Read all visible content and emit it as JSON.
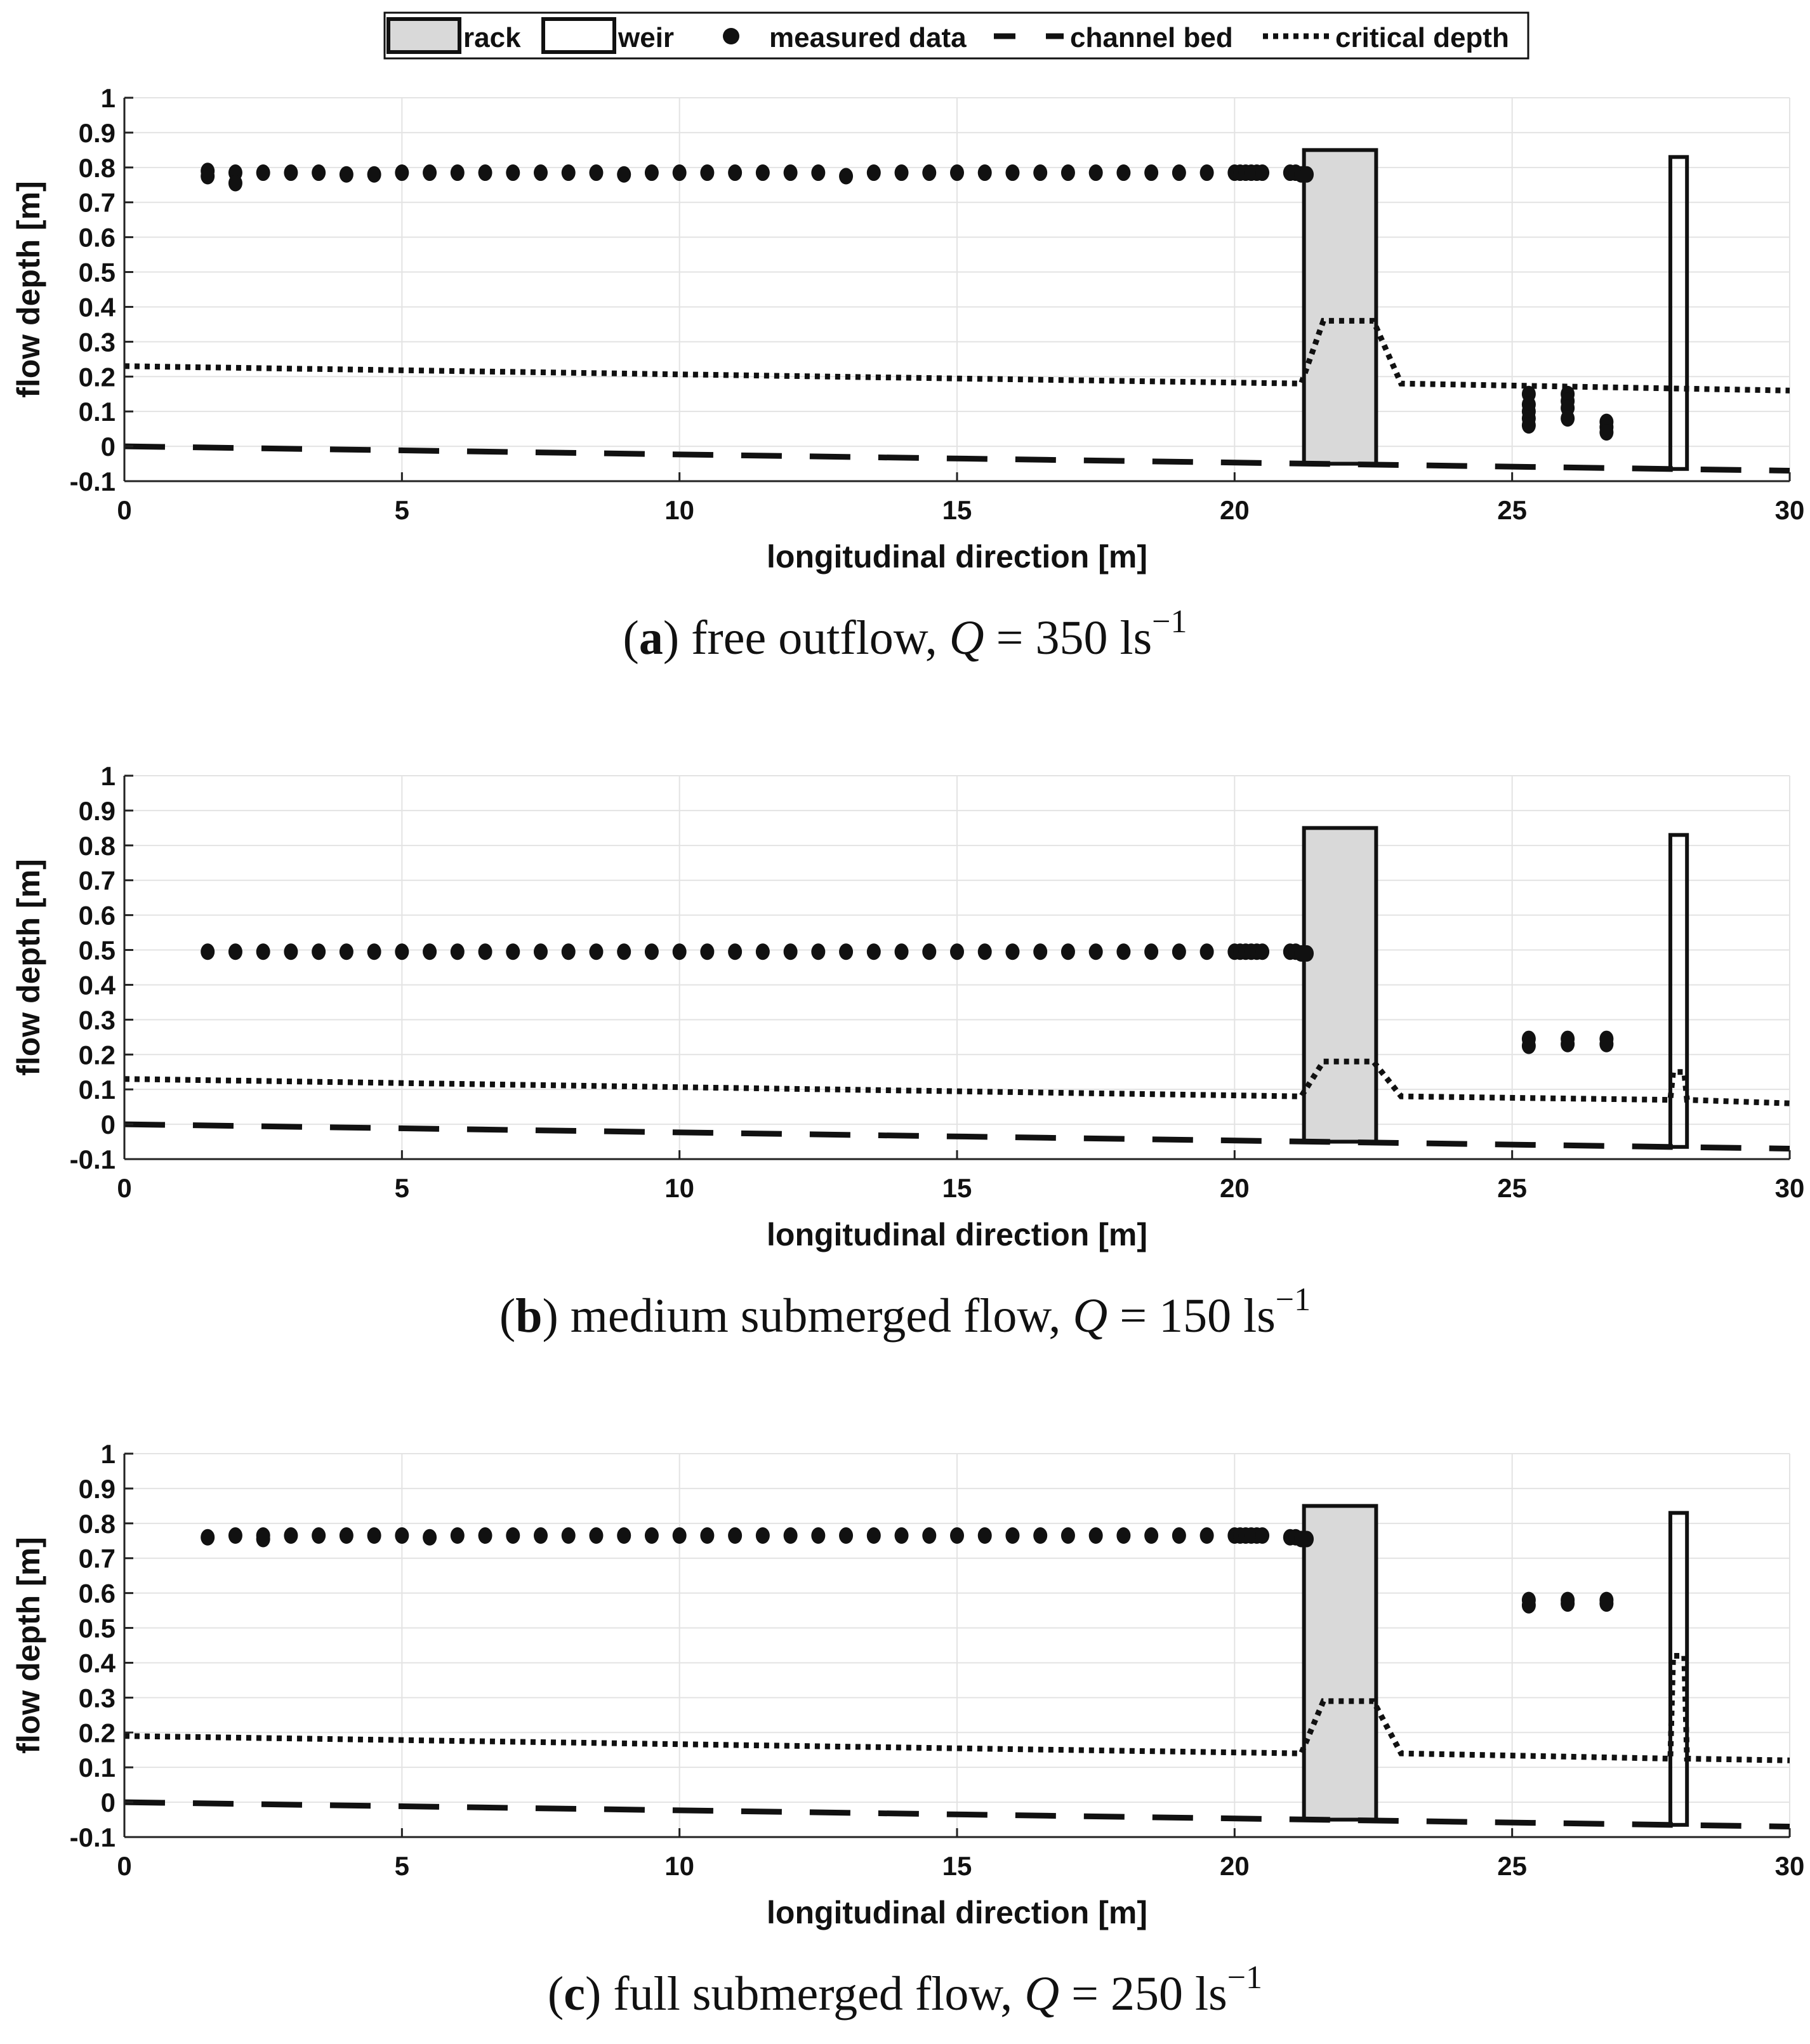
{
  "legend": {
    "entries": [
      {
        "key": "rack",
        "label": "rack",
        "style": "filled-box"
      },
      {
        "key": "weir",
        "label": "weir",
        "style": "empty-box"
      },
      {
        "key": "measured",
        "label": "measured data",
        "style": "dot"
      },
      {
        "key": "bed",
        "label": "channel bed",
        "style": "dashed"
      },
      {
        "key": "critical",
        "label": "critical depth",
        "style": "dotted"
      }
    ]
  },
  "colors": {
    "rack_fill": "#d9d9d9",
    "grid": "#e3e3e3",
    "ink": "#111111"
  },
  "chart_data": [
    {
      "type": "scatter",
      "caption": {
        "letter": "a",
        "text": "free outflow, ",
        "q_symbol": "Q",
        "eq": " = 350 ls",
        "exp": "−1"
      },
      "xlabel": "longitudinal direction [m]",
      "ylabel": "flow depth [m]",
      "xlim": [
        0,
        30
      ],
      "ylim": [
        -0.1,
        1
      ],
      "xticks": [
        0,
        5,
        10,
        15,
        20,
        25,
        30
      ],
      "yticks": [
        -0.1,
        0,
        0.1,
        0.2,
        0.3,
        0.4,
        0.5,
        0.6,
        0.7,
        0.8,
        0.9,
        1
      ],
      "ytick_labels": [
        "-0.1",
        "0",
        "0.1",
        "0.2",
        "0.3",
        "0.4",
        "0.5",
        "0.6",
        "0.7",
        "0.8",
        "0.9",
        "1"
      ],
      "grid": true,
      "rack": {
        "x": [
          21.25,
          22.55
        ],
        "y_top": 0.85,
        "y_bottom": -0.05
      },
      "weir": {
        "x": [
          27.85,
          28.15
        ],
        "y_top": 0.83,
        "y_bottom": -0.065
      },
      "channel_bed": {
        "x": [
          0,
          30
        ],
        "y": [
          0.0,
          -0.07
        ]
      },
      "critical_depth": {
        "x": [
          0,
          21.2,
          21.6,
          22.5,
          23.0,
          30
        ],
        "y": [
          0.23,
          0.18,
          0.36,
          0.36,
          0.18,
          0.16
        ]
      },
      "measured_data": {
        "x": [
          1.5,
          1.5,
          2.0,
          2.0,
          2.5,
          3.0,
          3.5,
          4.0,
          4.5,
          5.0,
          5.5,
          6.0,
          6.5,
          7.0,
          7.5,
          8.0,
          8.5,
          9.0,
          9.5,
          10.0,
          10.5,
          11.0,
          11.5,
          12.0,
          12.5,
          13.0,
          13.5,
          14.0,
          14.5,
          15.0,
          15.5,
          16.0,
          16.5,
          17.0,
          17.5,
          18.0,
          18.5,
          19.0,
          19.5,
          20.0,
          20.1,
          20.2,
          20.3,
          20.4,
          20.5,
          21.0,
          21.1,
          21.2,
          21.3,
          25.3,
          25.3,
          25.3,
          25.3,
          25.3,
          26.0,
          26.0,
          26.0,
          26.0,
          26.7,
          26.7,
          26.7
        ],
        "y": [
          0.79,
          0.775,
          0.785,
          0.755,
          0.785,
          0.785,
          0.785,
          0.78,
          0.78,
          0.785,
          0.785,
          0.785,
          0.785,
          0.785,
          0.785,
          0.785,
          0.785,
          0.78,
          0.785,
          0.785,
          0.785,
          0.785,
          0.785,
          0.785,
          0.785,
          0.775,
          0.785,
          0.785,
          0.785,
          0.785,
          0.785,
          0.785,
          0.785,
          0.785,
          0.785,
          0.785,
          0.785,
          0.785,
          0.785,
          0.785,
          0.785,
          0.785,
          0.785,
          0.785,
          0.785,
          0.785,
          0.785,
          0.78,
          0.78,
          0.15,
          0.12,
          0.1,
          0.08,
          0.06,
          0.15,
          0.13,
          0.11,
          0.08,
          0.07,
          0.055,
          0.04
        ]
      }
    },
    {
      "type": "scatter",
      "caption": {
        "letter": "b",
        "text": "medium submerged flow, ",
        "q_symbol": "Q",
        "eq": " = 150 ls",
        "exp": "−1"
      },
      "xlabel": "longitudinal direction [m]",
      "ylabel": "flow depth [m]",
      "xlim": [
        0,
        30
      ],
      "ylim": [
        -0.1,
        1
      ],
      "xticks": [
        0,
        5,
        10,
        15,
        20,
        25,
        30
      ],
      "yticks": [
        -0.1,
        0,
        0.1,
        0.2,
        0.3,
        0.4,
        0.5,
        0.6,
        0.7,
        0.8,
        0.9,
        1
      ],
      "ytick_labels": [
        "-0.1",
        "0",
        "0.1",
        "0.2",
        "0.3",
        "0.4",
        "0.5",
        "0.6",
        "0.7",
        "0.8",
        "0.9",
        "1"
      ],
      "grid": true,
      "rack": {
        "x": [
          21.25,
          22.55
        ],
        "y_top": 0.85,
        "y_bottom": -0.05
      },
      "weir": {
        "x": [
          27.85,
          28.15
        ],
        "y_top": 0.83,
        "y_bottom": -0.065
      },
      "channel_bed": {
        "x": [
          0,
          30
        ],
        "y": [
          0.0,
          -0.07
        ]
      },
      "critical_depth": {
        "x": [
          0,
          21.2,
          21.6,
          22.5,
          23.0,
          27.85,
          27.9,
          28.1,
          28.15,
          30
        ],
        "y": [
          0.13,
          0.08,
          0.18,
          0.18,
          0.08,
          0.07,
          0.15,
          0.15,
          0.07,
          0.06
        ]
      },
      "measured_data": {
        "x": [
          1.5,
          2.0,
          2.5,
          3.0,
          3.5,
          4.0,
          4.5,
          5.0,
          5.5,
          6.0,
          6.5,
          7.0,
          7.5,
          8.0,
          8.5,
          9.0,
          9.5,
          10.0,
          10.5,
          11.0,
          11.5,
          12.0,
          12.5,
          13.0,
          13.5,
          14.0,
          14.5,
          15.0,
          15.5,
          16.0,
          16.5,
          17.0,
          17.5,
          18.0,
          18.5,
          19.0,
          19.5,
          20.0,
          20.1,
          20.2,
          20.3,
          20.4,
          20.5,
          21.0,
          21.1,
          21.2,
          21.3,
          25.3,
          25.3,
          26.0,
          26.0,
          26.7,
          26.7
        ],
        "y": [
          0.495,
          0.495,
          0.495,
          0.495,
          0.495,
          0.495,
          0.495,
          0.495,
          0.495,
          0.495,
          0.495,
          0.495,
          0.495,
          0.495,
          0.495,
          0.495,
          0.495,
          0.495,
          0.495,
          0.495,
          0.495,
          0.495,
          0.495,
          0.495,
          0.495,
          0.495,
          0.495,
          0.495,
          0.495,
          0.495,
          0.495,
          0.495,
          0.495,
          0.495,
          0.495,
          0.495,
          0.495,
          0.495,
          0.495,
          0.495,
          0.495,
          0.495,
          0.495,
          0.495,
          0.495,
          0.49,
          0.49,
          0.245,
          0.225,
          0.245,
          0.23,
          0.245,
          0.23
        ]
      }
    },
    {
      "type": "scatter",
      "caption": {
        "letter": "c",
        "text": "full submerged flow, ",
        "q_symbol": "Q",
        "eq": " = 250 ls",
        "exp": "−1"
      },
      "xlabel": "longitudinal direction [m]",
      "ylabel": "flow depth [m]",
      "xlim": [
        0,
        30
      ],
      "ylim": [
        -0.1,
        1
      ],
      "xticks": [
        0,
        5,
        10,
        15,
        20,
        25,
        30
      ],
      "yticks": [
        -0.1,
        0,
        0.1,
        0.2,
        0.3,
        0.4,
        0.5,
        0.6,
        0.7,
        0.8,
        0.9,
        1
      ],
      "ytick_labels": [
        "-0.1",
        "0",
        "0.1",
        "0.2",
        "0.3",
        "0.4",
        "0.5",
        "0.6",
        "0.7",
        "0.8",
        "0.9",
        "1"
      ],
      "grid": true,
      "rack": {
        "x": [
          21.25,
          22.55
        ],
        "y_top": 0.85,
        "y_bottom": -0.05
      },
      "weir": {
        "x": [
          27.85,
          28.15
        ],
        "y_top": 0.83,
        "y_bottom": -0.065
      },
      "channel_bed": {
        "x": [
          0,
          30
        ],
        "y": [
          0.0,
          -0.07
        ]
      },
      "critical_depth": {
        "x": [
          0,
          21.2,
          21.6,
          22.5,
          23.0,
          27.85,
          27.9,
          28.1,
          28.15,
          30
        ],
        "y": [
          0.19,
          0.14,
          0.29,
          0.29,
          0.14,
          0.125,
          0.42,
          0.42,
          0.125,
          0.12
        ]
      },
      "measured_data": {
        "x": [
          1.5,
          2.0,
          2.5,
          2.5,
          3.0,
          3.5,
          4.0,
          4.5,
          5.0,
          5.5,
          6.0,
          6.5,
          7.0,
          7.5,
          8.0,
          8.5,
          9.0,
          9.5,
          10.0,
          10.5,
          11.0,
          11.5,
          12.0,
          12.5,
          13.0,
          13.5,
          14.0,
          14.5,
          15.0,
          15.5,
          16.0,
          16.5,
          17.0,
          17.5,
          18.0,
          18.5,
          19.0,
          19.5,
          20.0,
          20.1,
          20.2,
          20.3,
          20.4,
          20.5,
          21.0,
          21.1,
          21.2,
          21.3,
          25.3,
          25.3,
          26.0,
          26.0,
          26.7,
          26.7
        ],
        "y": [
          0.76,
          0.765,
          0.765,
          0.755,
          0.765,
          0.765,
          0.765,
          0.765,
          0.765,
          0.76,
          0.765,
          0.765,
          0.765,
          0.765,
          0.765,
          0.765,
          0.765,
          0.765,
          0.765,
          0.765,
          0.765,
          0.765,
          0.765,
          0.765,
          0.765,
          0.765,
          0.765,
          0.765,
          0.765,
          0.765,
          0.765,
          0.765,
          0.765,
          0.765,
          0.765,
          0.765,
          0.765,
          0.765,
          0.765,
          0.765,
          0.765,
          0.765,
          0.765,
          0.765,
          0.76,
          0.76,
          0.755,
          0.755,
          0.58,
          0.565,
          0.58,
          0.57,
          0.58,
          0.57
        ]
      }
    }
  ]
}
